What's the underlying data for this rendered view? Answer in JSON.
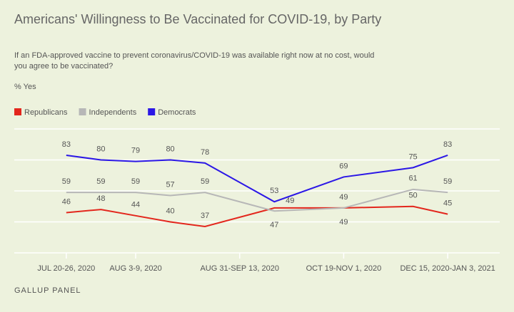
{
  "chart_data": {
    "type": "line",
    "title": "Americans' Willingness to Be Vaccinated for COVID-19, by Party",
    "subtitle": [
      "If an FDA-approved vaccine to prevent coronavirus/COVID-19 was available right now at no cost, would",
      "you agree to be vaccinated?"
    ],
    "y_label": "% Yes",
    "source": "GALLUP PANEL",
    "x": [
      0,
      1,
      2,
      3,
      4,
      6,
      8,
      10,
      11
    ],
    "xlim": [
      -1.5,
      12.5
    ],
    "xticks": [
      {
        "value": 0,
        "label": "JUL 20-26, 2020"
      },
      {
        "value": 2,
        "label": "AUG 3-9, 2020"
      },
      {
        "value": 5,
        "label": "AUG 31-SEP 13, 2020"
      },
      {
        "value": 8,
        "label": "OCT 19-NOV 1, 2020"
      },
      {
        "value": 11,
        "label": "DEC 15, 2020-JAN 3, 2021"
      }
    ],
    "ylim": [
      20,
      100
    ],
    "yticks": [
      20,
      40,
      60,
      80,
      100
    ],
    "grid": true,
    "series": [
      {
        "name": "Republicans",
        "color": "#e3261c",
        "values": [
          46,
          48,
          44,
          40,
          37,
          49,
          49,
          50,
          45
        ]
      },
      {
        "name": "Independents",
        "color": "#b7b7b7",
        "values": [
          59,
          59,
          59,
          57,
          59,
          47,
          49,
          61,
          59
        ]
      },
      {
        "name": "Democrats",
        "color": "#2b17e6",
        "values": [
          83,
          80,
          79,
          80,
          78,
          53,
          69,
          75,
          83
        ]
      }
    ]
  }
}
